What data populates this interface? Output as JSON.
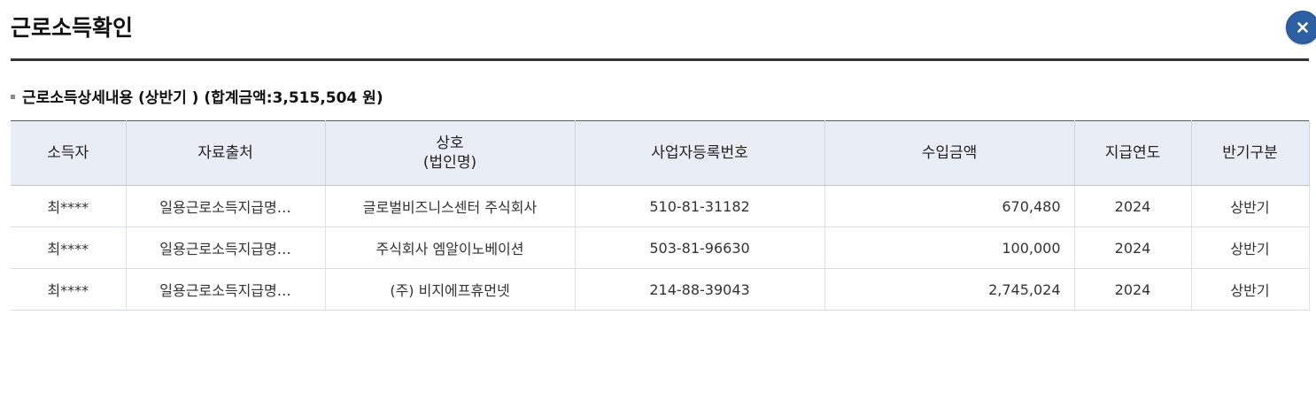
{
  "modal": {
    "title": "근로소득확인",
    "close_icon": "close-icon",
    "accent_color": "#2d5fa3"
  },
  "section": {
    "title": "근로소득상세내용 (상반기 )",
    "total_text": "(합계금액:3,515,504 원)"
  },
  "table": {
    "headers": {
      "earner": "소득자",
      "source": "자료출처",
      "company_line1": "상호",
      "company_line2": "(법인명)",
      "biz_no": "사업자등록번호",
      "amount": "수입금액",
      "year": "지급연도",
      "half": "반기구분"
    },
    "rows": [
      {
        "earner": "최****",
        "source": "일용근로소득지급명…",
        "company": "글로벌비즈니스센터 주식회사",
        "biz_no": "510-81-31182",
        "amount": "670,480",
        "year": "2024",
        "half": "상반기"
      },
      {
        "earner": "최****",
        "source": "일용근로소득지급명…",
        "company": "주식회사 엠알이노베이션",
        "biz_no": "503-81-96630",
        "amount": "100,000",
        "year": "2024",
        "half": "상반기"
      },
      {
        "earner": "최****",
        "source": "일용근로소득지급명…",
        "company": "(주) 비지에프휴먼넷",
        "biz_no": "214-88-39043",
        "amount": "2,745,024",
        "year": "2024",
        "half": "상반기"
      }
    ]
  }
}
